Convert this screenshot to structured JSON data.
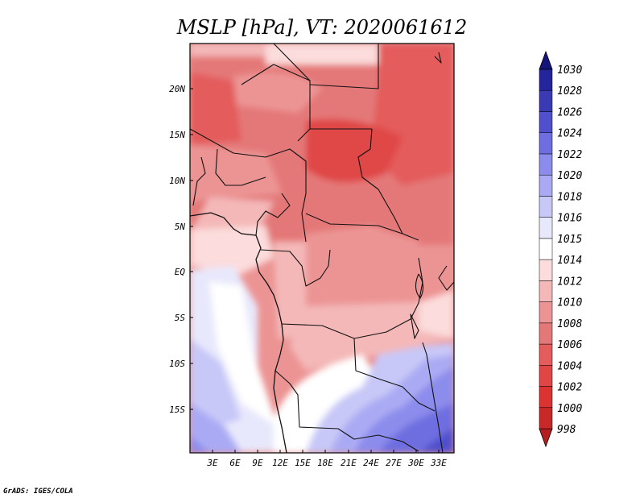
{
  "title": "MSLP [hPa], VT: 2020061612",
  "footer": "GrADS: IGES/COLA",
  "axes": {
    "lat_labels": [
      "20N",
      "15N",
      "10N",
      "5N",
      "EQ",
      "5S",
      "10S",
      "15S"
    ],
    "lon_labels": [
      "3E",
      "6E",
      "9E",
      "12E",
      "15E",
      "18E",
      "21E",
      "24E",
      "27E",
      "30E",
      "33E"
    ]
  },
  "colorbar": {
    "levels": [
      "998",
      "1000",
      "1002",
      "1004",
      "1006",
      "1008",
      "1010",
      "1012",
      "1014",
      "1015",
      "1016",
      "1018",
      "1020",
      "1022",
      "1024",
      "1026",
      "1028",
      "1030"
    ],
    "colors": [
      "#b41e1e",
      "#c82828",
      "#dc3232",
      "#e04646",
      "#e45c5c",
      "#e47878",
      "#ec9494",
      "#f4b8b8",
      "#fcdcdc",
      "#ffffff",
      "#e8e8fc",
      "#c8c8f8",
      "#aaaaf4",
      "#8c8cec",
      "#6e6ee0",
      "#5050cc",
      "#3a3ab4",
      "#24249c",
      "#14147a"
    ]
  }
}
